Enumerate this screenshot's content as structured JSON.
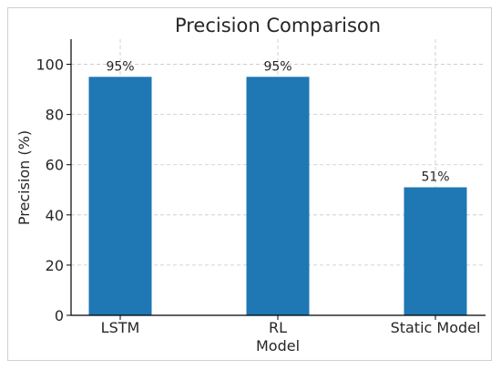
{
  "chart_data": {
    "type": "bar",
    "title": "Precision Comparison",
    "xlabel": "Model",
    "ylabel": "Precision (%)",
    "categories": [
      "LSTM",
      "RL",
      "Static Model"
    ],
    "values": [
      95,
      95,
      51
    ],
    "data_labels": [
      "95%",
      "95%",
      "51%"
    ],
    "ylim": [
      0,
      110
    ],
    "yticks": [
      0,
      20,
      40,
      60,
      80,
      100
    ],
    "grid": true,
    "bar_color": "#1f77b4"
  }
}
